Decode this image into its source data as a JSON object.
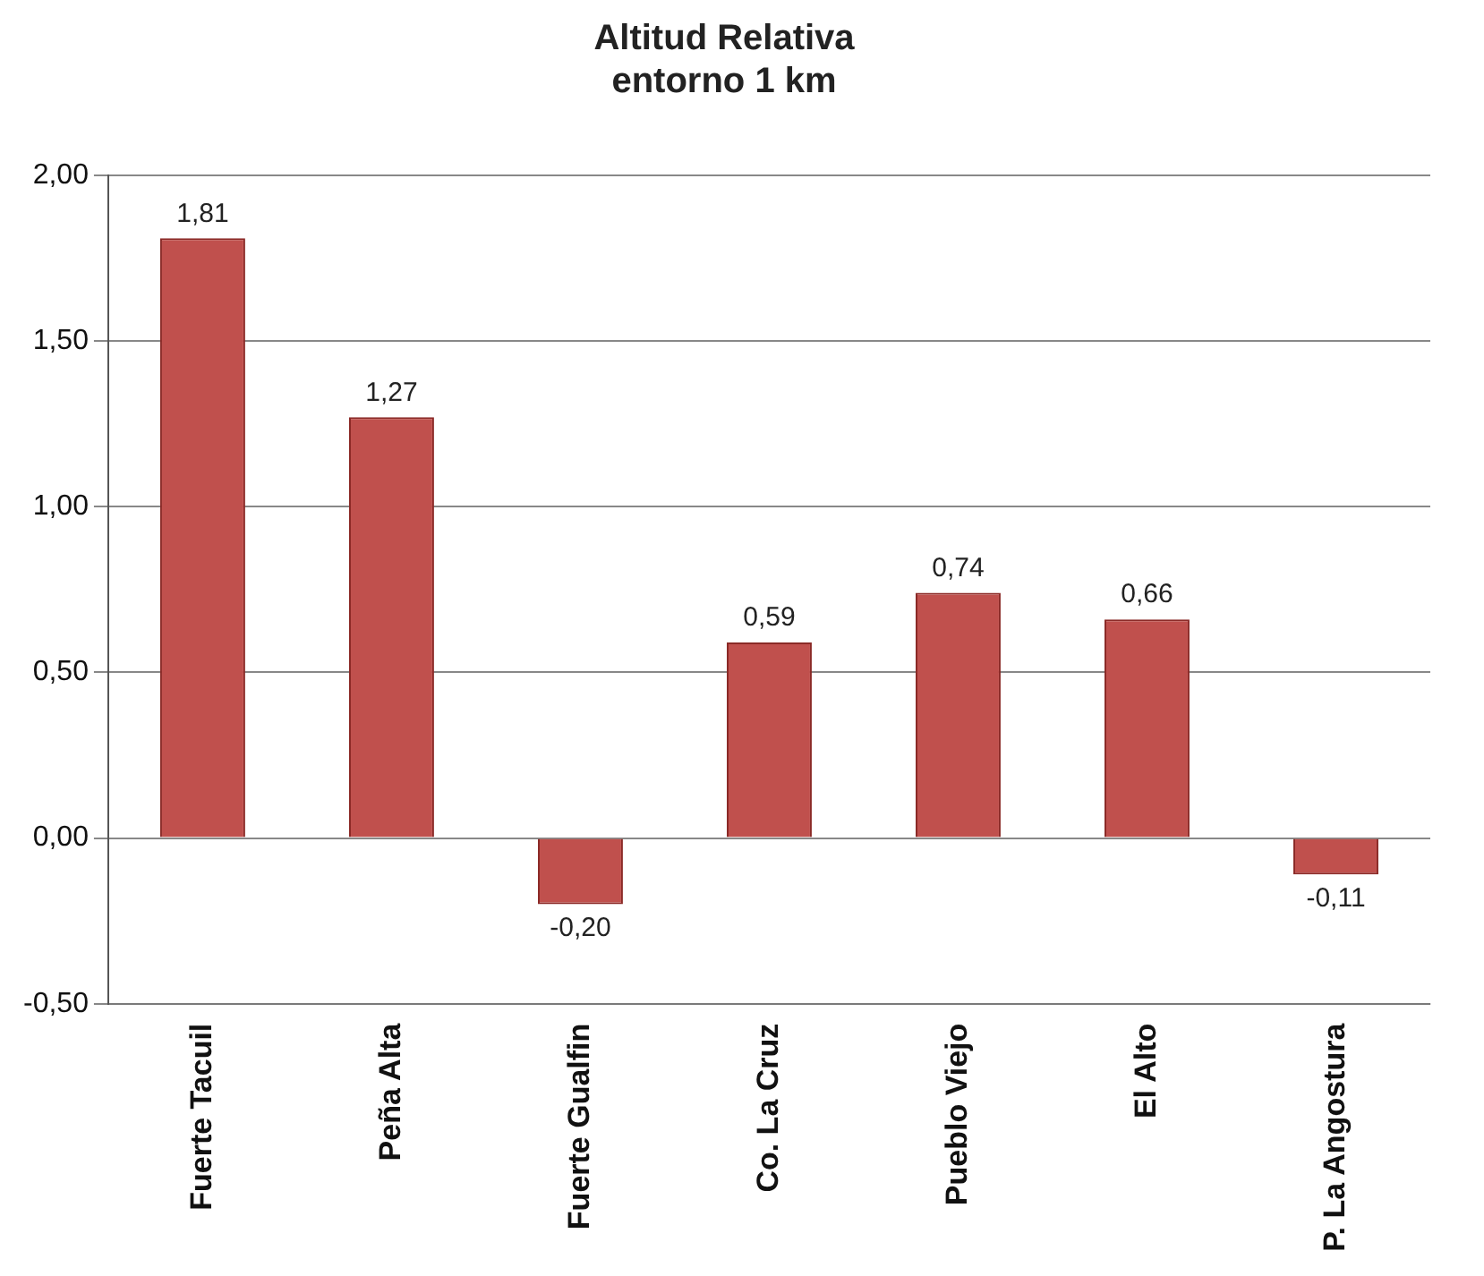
{
  "chart_data": {
    "type": "bar",
    "title": "Altitud Relativa\nentorno 1 km",
    "categories": [
      "Fuerte Tacuil",
      "Peña Alta",
      "Fuerte Gualfin",
      "Co. La Cruz",
      "Pueblo Viejo",
      "El Alto",
      "P. La Angostura"
    ],
    "values": [
      1.81,
      1.27,
      -0.2,
      0.59,
      0.74,
      0.66,
      -0.11
    ],
    "value_labels": [
      "1,81",
      "1,27",
      "-0,20",
      "0,59",
      "0,74",
      "0,66",
      "-0,11"
    ],
    "color": "#c0504d",
    "ylim": [
      -0.5,
      2.0
    ],
    "yticks": [
      {
        "value": -0.5,
        "label": "-0,50"
      },
      {
        "value": 0,
        "label": "0,00"
      },
      {
        "value": 0.5,
        "label": "0,50"
      },
      {
        "value": 1,
        "label": "1,00"
      },
      {
        "value": 1.5,
        "label": "1,50"
      },
      {
        "value": 2,
        "label": "2,00"
      }
    ],
    "grid": "y",
    "legend": false
  }
}
